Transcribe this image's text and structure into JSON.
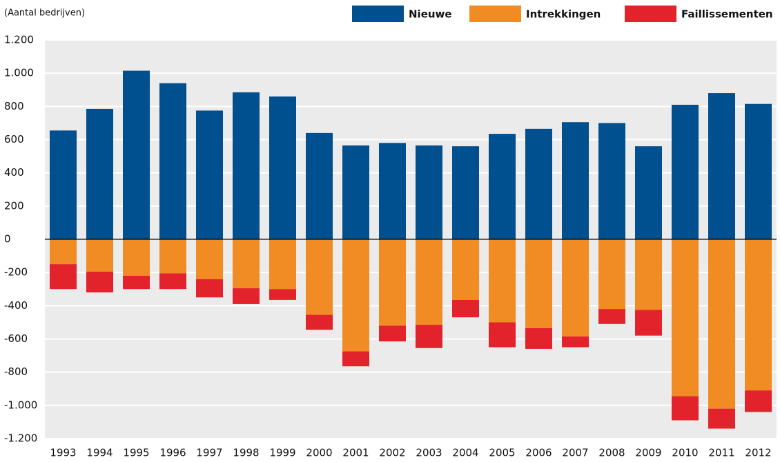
{
  "chart_data": {
    "type": "bar",
    "stacked": true,
    "subtitle": "(Aantal bedrijven)",
    "categories": [
      "1993",
      "1994",
      "1995",
      "1996",
      "1997",
      "1998",
      "1999",
      "2000",
      "2001",
      "2002",
      "2003",
      "2004",
      "2005",
      "2006",
      "2007",
      "2008",
      "2009",
      "2010",
      "2011",
      "2012"
    ],
    "series": [
      {
        "name": "Nieuwe",
        "color": "#00508f",
        "values": [
          655,
          785,
          1015,
          940,
          775,
          885,
          860,
          640,
          565,
          580,
          565,
          560,
          635,
          665,
          705,
          700,
          560,
          810,
          880,
          815
        ]
      },
      {
        "name": "Intrekkingen",
        "color": "#f08c23",
        "values": [
          -150,
          -195,
          -220,
          -205,
          -240,
          -295,
          -300,
          -455,
          -675,
          -520,
          -515,
          -365,
          -500,
          -535,
          -585,
          -420,
          -425,
          -945,
          -1020,
          -910
        ]
      },
      {
        "name": "Faillissementen",
        "color": "#e3232b",
        "values": [
          -150,
          -125,
          -80,
          -95,
          -110,
          -95,
          -65,
          -90,
          -90,
          -95,
          -140,
          -105,
          -150,
          -125,
          -65,
          -90,
          -155,
          -145,
          -120,
          -130
        ]
      }
    ],
    "ylim": [
      -1200,
      1200
    ],
    "yticks": [
      {
        "value": -1200,
        "label": "-1.200"
      },
      {
        "value": -1000,
        "label": "-1.000"
      },
      -800,
      -600,
      -400,
      -200,
      0,
      200,
      400,
      600,
      800,
      {
        "value": 1000,
        "label": "1.000"
      },
      {
        "value": 1200,
        "label": "1.200"
      }
    ],
    "grid": true,
    "legend": "top"
  }
}
